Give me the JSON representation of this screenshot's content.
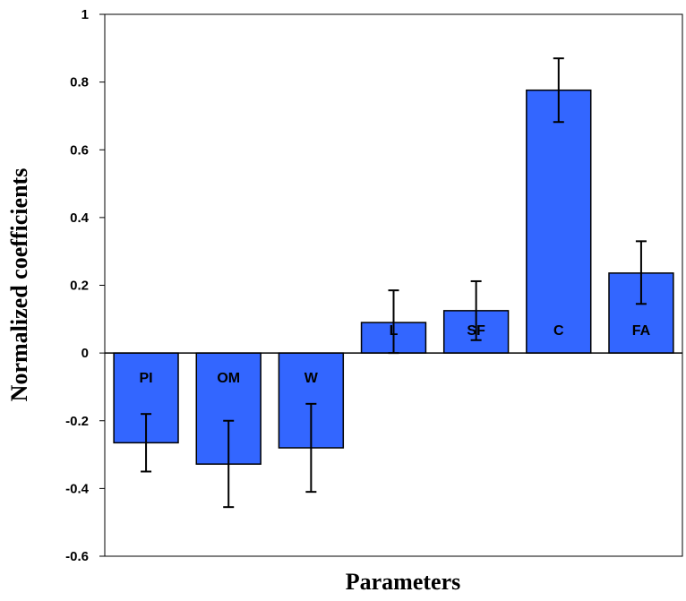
{
  "chart_data": {
    "type": "bar",
    "title": "",
    "xlabel": "Parameters",
    "ylabel": "Normalized coefficients",
    "categories": [
      "PI",
      "OM",
      "W",
      "L",
      "SF",
      "C",
      "FA"
    ],
    "values": [
      -0.265,
      -0.328,
      -0.28,
      0.09,
      0.125,
      0.776,
      0.236
    ],
    "error_low": [
      -0.35,
      -0.455,
      -0.41,
      0.0,
      0.038,
      0.682,
      0.145
    ],
    "error_high": [
      -0.18,
      -0.2,
      -0.15,
      0.185,
      0.212,
      0.87,
      0.33
    ],
    "ylim": [
      -0.6,
      1.0
    ],
    "yticks": [
      1,
      0.8,
      0.6,
      0.4,
      0.2,
      0,
      -0.2,
      -0.4,
      -0.6
    ],
    "ytick_labels": [
      "1",
      "0.8",
      "0.6",
      "0.4",
      "0.2",
      "0",
      "-0.2",
      "-0.4",
      "-0.6"
    ],
    "grid": false,
    "legend": "none",
    "bar_color": "#3366FF"
  }
}
